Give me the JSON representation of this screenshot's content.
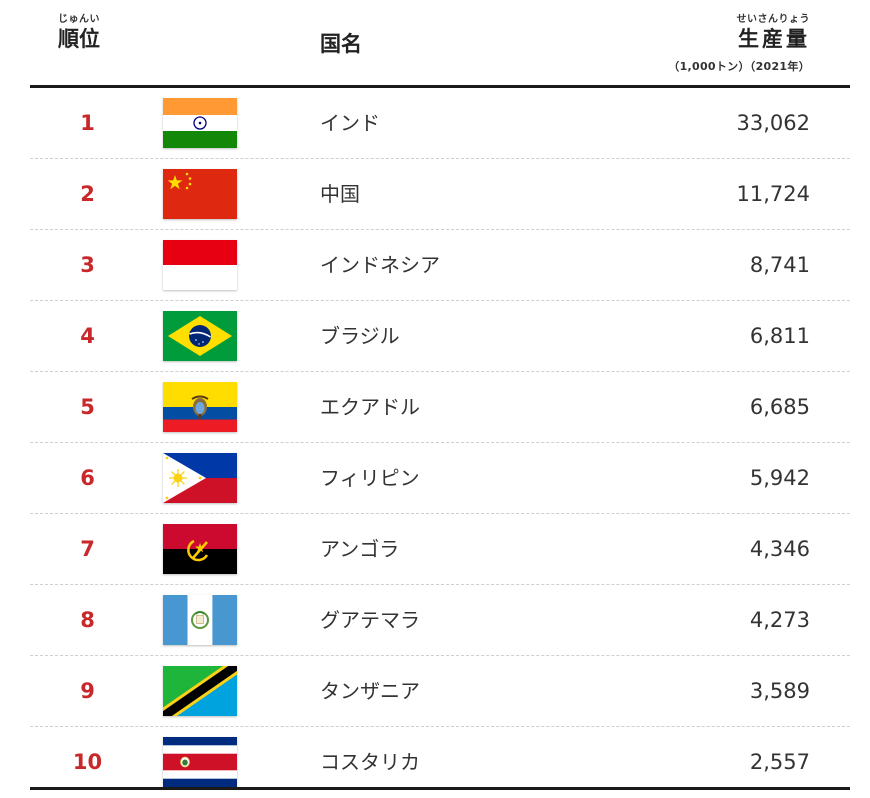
{
  "header": {
    "rank_ruby": "じゅんい",
    "rank_label": "順位",
    "country_label": "国名",
    "production_ruby": "せいさんりょう",
    "production_label": "生産量",
    "unit_note": "（1,000トン）（2021年）"
  },
  "rows": [
    {
      "rank": "1",
      "country": "インド",
      "value": "33,062",
      "flag": "india-flag"
    },
    {
      "rank": "2",
      "country": "中国",
      "value": "11,724",
      "flag": "china-flag"
    },
    {
      "rank": "3",
      "country": "インドネシア",
      "value": "8,741",
      "flag": "indonesia-flag"
    },
    {
      "rank": "4",
      "country": "ブラジル",
      "value": "6,811",
      "flag": "brazil-flag"
    },
    {
      "rank": "5",
      "country": "エクアドル",
      "value": "6,685",
      "flag": "ecuador-flag"
    },
    {
      "rank": "6",
      "country": "フィリピン",
      "value": "5,942",
      "flag": "philippines-flag"
    },
    {
      "rank": "7",
      "country": "アンゴラ",
      "value": "4,346",
      "flag": "angola-flag"
    },
    {
      "rank": "8",
      "country": "グアテマラ",
      "value": "4,273",
      "flag": "guatemala-flag"
    },
    {
      "rank": "9",
      "country": "タンザニア",
      "value": "3,589",
      "flag": "tanzania-flag"
    },
    {
      "rank": "10",
      "country": "コスタリカ",
      "value": "2,557",
      "flag": "costa-rica-flag"
    }
  ],
  "colors": {
    "rank": "#c8282a",
    "rule": "#1a1a1a",
    "divider": "#cfcfcf"
  }
}
